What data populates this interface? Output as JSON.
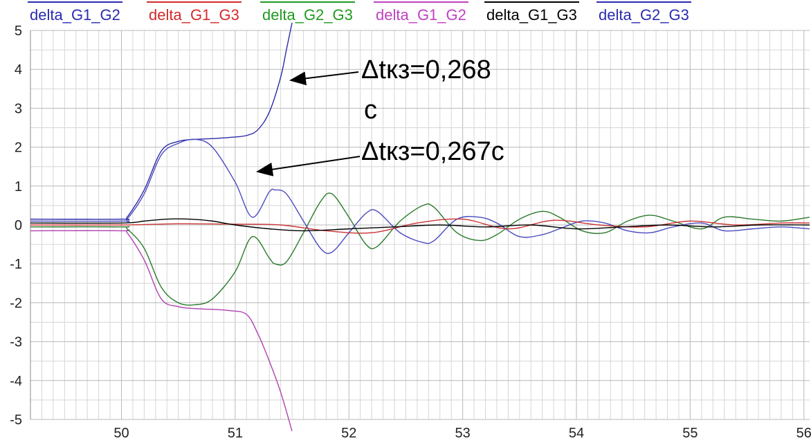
{
  "chart_data": {
    "type": "line",
    "title": "",
    "xlabel": "",
    "ylabel": "",
    "xlim": [
      49.2,
      56.05
    ],
    "ylim": [
      -5,
      5
    ],
    "x_ticks": [
      "50",
      "51",
      "52",
      "53",
      "54",
      "55",
      "56"
    ],
    "y_ticks": [
      "5",
      "4",
      "3",
      "2",
      "1",
      "0",
      "-1",
      "-2",
      "-3",
      "-4",
      "-5"
    ],
    "grid": true,
    "legend_position": "top",
    "legend": [
      {
        "name": "delta_G1_G2",
        "color": "#2b2bb0"
      },
      {
        "name": "delta_G1_G3",
        "color": "#d42a2a"
      },
      {
        "name": "delta_G2_G3",
        "color": "#1f9a1f"
      },
      {
        "name": "delta_G1_G2",
        "color": "#c040c0"
      },
      {
        "name": "delta_G1_G3",
        "color": "#000000"
      },
      {
        "name": "delta_G2_G3",
        "color": "#2b2bb0"
      }
    ],
    "series": [
      {
        "name": "delta_G1_G2",
        "color": "#2a2aa8",
        "x": [
          49.2,
          50.0,
          50.05,
          50.2,
          50.35,
          50.5,
          50.65,
          50.8,
          50.95,
          51.1,
          51.2,
          51.3,
          51.4,
          51.45,
          51.5
        ],
        "y": [
          0.15,
          0.15,
          0.2,
          0.9,
          1.9,
          2.15,
          2.2,
          2.22,
          2.25,
          2.3,
          2.45,
          2.9,
          3.8,
          4.5,
          5.2
        ]
      },
      {
        "name": "delta_G1_G2",
        "color": "#b040b0",
        "x": [
          49.2,
          50.0,
          50.05,
          50.2,
          50.35,
          50.5,
          50.65,
          50.8,
          50.95,
          51.1,
          51.2,
          51.3,
          51.4,
          51.5
        ],
        "y": [
          -0.15,
          -0.15,
          -0.2,
          -0.9,
          -1.9,
          -2.1,
          -2.15,
          -2.17,
          -2.2,
          -2.3,
          -2.8,
          -3.5,
          -4.3,
          -5.3
        ]
      },
      {
        "name": "delta_G2_G3",
        "color": "#2a7a2a",
        "x": [
          49.2,
          50.0,
          50.05,
          50.2,
          50.35,
          50.5,
          50.65,
          50.8,
          51.0,
          51.15,
          51.3,
          51.35,
          51.45,
          51.6,
          51.75,
          51.85,
          52.0,
          52.15,
          52.25,
          52.45,
          52.65,
          52.75,
          52.95,
          53.15,
          53.3,
          53.5,
          53.7,
          53.85,
          54.05,
          54.25,
          54.45,
          54.65,
          54.85,
          55.1,
          55.3,
          55.55,
          55.8,
          56.05
        ],
        "y": [
          -0.05,
          -0.05,
          -0.1,
          -0.6,
          -1.6,
          -2.0,
          -2.05,
          -1.9,
          -1.2,
          -0.3,
          -0.85,
          -1.0,
          -0.95,
          -0.2,
          0.6,
          0.8,
          0.2,
          -0.5,
          -0.55,
          0.1,
          0.5,
          0.45,
          -0.2,
          -0.4,
          -0.25,
          0.15,
          0.35,
          0.2,
          -0.15,
          -0.2,
          0.1,
          0.25,
          0.1,
          -0.1,
          0.2,
          0.15,
          0.1,
          0.2
        ]
      },
      {
        "name": "delta_G1_G3",
        "color": "#4a4ac0",
        "x": [
          49.2,
          50.0,
          50.05,
          50.2,
          50.35,
          50.5,
          50.65,
          50.8,
          51.0,
          51.15,
          51.3,
          51.35,
          51.45,
          51.6,
          51.75,
          51.85,
          52.0,
          52.15,
          52.25,
          52.45,
          52.65,
          52.75,
          52.95,
          53.15,
          53.3,
          53.5,
          53.7,
          53.85,
          54.05,
          54.25,
          54.45,
          54.65,
          54.85,
          55.1,
          55.3,
          55.55,
          55.8,
          56.05
        ],
        "y": [
          0.1,
          0.1,
          0.15,
          0.8,
          1.8,
          2.1,
          2.2,
          2.0,
          1.1,
          0.2,
          0.85,
          0.9,
          0.8,
          0.1,
          -0.6,
          -0.7,
          -0.2,
          0.3,
          0.35,
          -0.2,
          -0.45,
          -0.4,
          0.15,
          0.2,
          0.05,
          -0.3,
          -0.25,
          -0.1,
          0.1,
          0.05,
          -0.15,
          -0.2,
          -0.05,
          0.05,
          -0.15,
          -0.1,
          -0.05,
          -0.1
        ]
      },
      {
        "name": "delta_G1_G3",
        "color": "#cc3333",
        "x": [
          49.2,
          50.0,
          50.5,
          51.0,
          51.4,
          51.8,
          52.2,
          52.6,
          53.0,
          53.4,
          53.8,
          54.2,
          54.6,
          55.0,
          55.4,
          55.8,
          56.05
        ],
        "y": [
          0.0,
          0.0,
          0.03,
          0.02,
          0.0,
          -0.15,
          -0.2,
          0.05,
          0.15,
          -0.1,
          0.12,
          0.0,
          -0.05,
          0.1,
          0.0,
          0.05,
          0.05
        ]
      },
      {
        "name": "delta_G1_G3",
        "color": "#000000",
        "x": [
          49.2,
          50.0,
          50.2,
          50.4,
          50.6,
          50.8,
          51.0,
          51.3,
          51.6,
          52.0,
          52.4,
          52.8,
          53.2,
          53.6,
          54.0,
          54.4,
          54.8,
          55.2,
          55.6,
          56.05
        ],
        "y": [
          0.05,
          0.05,
          0.1,
          0.15,
          0.15,
          0.1,
          0.0,
          -0.1,
          -0.15,
          -0.1,
          -0.05,
          0.0,
          -0.05,
          0.0,
          -0.1,
          -0.05,
          0.0,
          -0.05,
          0.0,
          0.0
        ]
      }
    ],
    "annotations": [
      {
        "text": "Δtкз=0,268",
        "points_to_x": 51.5,
        "points_to_y": 3.7
      },
      {
        "text": "с"
      },
      {
        "text": "Δtкз=0,267с",
        "points_to_x": 51.2,
        "points_to_y": 1.4
      }
    ]
  }
}
